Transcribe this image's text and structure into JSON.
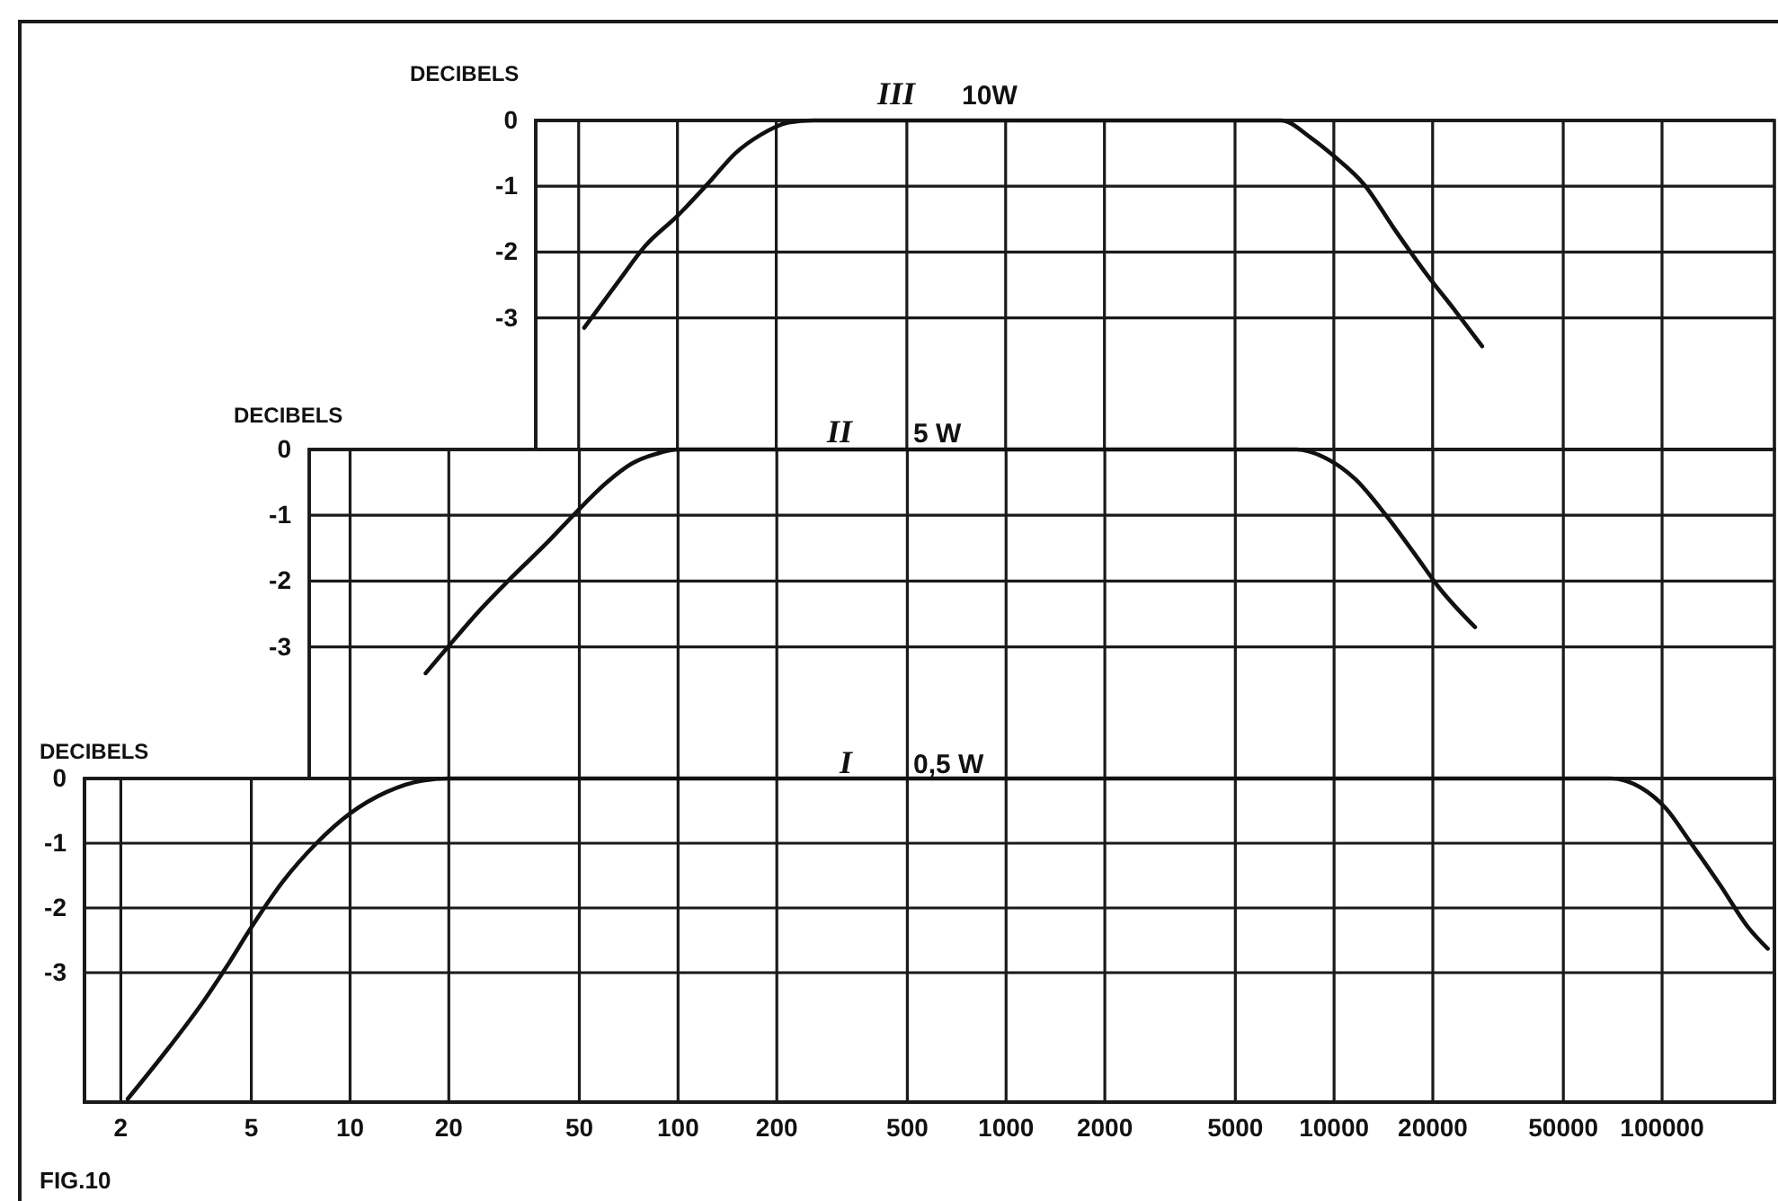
{
  "chart_data": [
    {
      "type": "line",
      "title": "III 10W",
      "ylabel": "DECIBELS",
      "x": [
        52,
        66,
        80,
        100,
        127,
        150,
        179,
        218,
        260,
        6900,
        8550,
        10000,
        12400,
        15200,
        19200,
        23500,
        28300
      ],
      "values": [
        -3.15,
        -2.45,
        -1.9,
        -1.45,
        -0.9,
        -0.5,
        -0.22,
        -0.03,
        0,
        0,
        -0.27,
        -0.54,
        -0.98,
        -1.63,
        -2.34,
        -2.9,
        -3.43
      ],
      "color": "#111111",
      "xlim": [
        37,
        220000
      ],
      "ylim": [
        -5,
        0
      ],
      "xticks": [
        50,
        100,
        200,
        500,
        1000,
        2000,
        5000,
        10000,
        20000,
        50000,
        100000
      ],
      "yticks": [
        0,
        -1,
        -2,
        -3
      ],
      "log": "x",
      "grid": true,
      "tick_labels": "y"
    },
    {
      "type": "line",
      "title": "II 5 W",
      "ylabel": "DECIBELS",
      "x": [
        17,
        19.5,
        25,
        31,
        40,
        49,
        61,
        72,
        88,
        100,
        7700,
        9500,
        11600,
        14400,
        17800,
        20900,
        26900
      ],
      "values": [
        -3.4,
        -3.05,
        -2.43,
        -1.95,
        -1.41,
        -0.95,
        -0.49,
        -0.22,
        -0.05,
        0,
        0,
        -0.14,
        -0.45,
        -1.0,
        -1.62,
        -2.1,
        -2.7
      ],
      "color": "#111111",
      "xlim": [
        1.55,
        220000
      ],
      "ylim": [
        -5,
        0
      ],
      "xticks": [
        10,
        20,
        50,
        100,
        200,
        500,
        1000,
        2000,
        5000,
        10000,
        20000,
        50000,
        100000
      ],
      "yticks": [
        0,
        -1,
        -2,
        -3
      ],
      "log": "x",
      "grid": true,
      "tick_labels": "y"
    },
    {
      "type": "line",
      "title": "I 0,5 W",
      "ylabel": "DECIBELS",
      "x": [
        2.1,
        2.8,
        3.6,
        4.2,
        5,
        6.2,
        7.9,
        10,
        12.9,
        16.7,
        20,
        70000,
        86000,
        103000,
        121000,
        150000,
        183000,
        210000
      ],
      "values": [
        -4.95,
        -4.16,
        -3.42,
        -2.91,
        -2.3,
        -1.61,
        -1.0,
        -0.54,
        -0.21,
        -0.03,
        0,
        0,
        -0.14,
        -0.47,
        -0.96,
        -1.64,
        -2.3,
        -2.63
      ],
      "color": "#111111",
      "xlim": [
        1.55,
        220000
      ],
      "ylim": [
        -5,
        0
      ],
      "xticks": [
        2,
        5,
        10,
        20,
        50,
        100,
        200,
        500,
        1000,
        2000,
        5000,
        10000,
        20000,
        50000,
        100000
      ],
      "yticks": [
        0,
        -1,
        -2,
        -3
      ],
      "log": "x",
      "grid": true,
      "annotations": [
        "FIG.10"
      ]
    }
  ]
}
